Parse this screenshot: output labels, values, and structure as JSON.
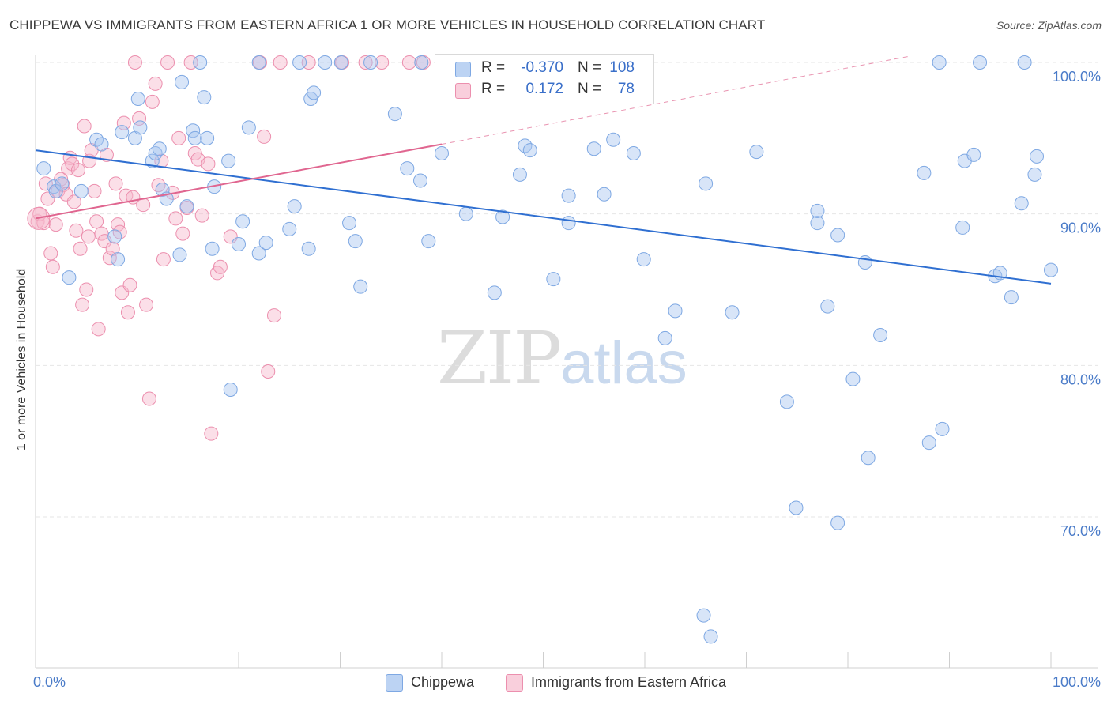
{
  "title": "CHIPPEWA VS IMMIGRANTS FROM EASTERN AFRICA 1 OR MORE VEHICLES IN HOUSEHOLD CORRELATION CHART",
  "source": "Source: ZipAtlas.com",
  "watermark": {
    "zip": "ZIP",
    "atlas": "atlas"
  },
  "legend": {
    "rows": [
      {
        "r_label": "R =",
        "r_value": "-0.370",
        "n_label": "N =",
        "n_value": "108",
        "color": "#a8c6ef"
      },
      {
        "r_label": "R =",
        "r_value": "0.172",
        "n_label": "N =",
        "n_value": "78",
        "color": "#f6b8cc"
      }
    ]
  },
  "bottom_legend": [
    {
      "label": "Chippewa",
      "color": "#a8c6ef"
    },
    {
      "label": "Immigrants from Eastern Africa",
      "color": "#f6b8cc"
    }
  ],
  "colors": {
    "blue_fill": "#a8c6ef",
    "blue_stroke": "#7ea8e3",
    "blue_line": "#2f6fd1",
    "pink_fill": "#f6b8cc",
    "pink_stroke": "#ec8fae",
    "pink_line": "#e06690",
    "grid": "#e6e6e6",
    "tick_text": "#4a7bc8"
  },
  "chart_data": {
    "type": "scatter",
    "title": "CHIPPEWA VS IMMIGRANTS FROM EASTERN AFRICA 1 OR MORE VEHICLES IN HOUSEHOLD CORRELATION CHART",
    "xlabel": "",
    "ylabel": "1 or more Vehicles in Household",
    "xlim": [
      0,
      100
    ],
    "ylim": [
      60,
      101
    ],
    "x_tick_labels": [
      "0.0%",
      "100.0%"
    ],
    "y_ticks": [
      70,
      80,
      90,
      100
    ],
    "y_tick_labels": [
      "70.0%",
      "80.0%",
      "90.0%",
      "100.0%"
    ],
    "grid": true,
    "legend_position": "top-center",
    "series": [
      {
        "name": "Chippewa",
        "points": [
          [
            0.8,
            93
          ],
          [
            1.8,
            91.8
          ],
          [
            2,
            91.5
          ],
          [
            2.6,
            92
          ],
          [
            3.3,
            85.8
          ],
          [
            4.5,
            91.5
          ],
          [
            6,
            94.9
          ],
          [
            6.5,
            94.6
          ],
          [
            7.8,
            88.5
          ],
          [
            8.1,
            87
          ],
          [
            8.5,
            95.4
          ],
          [
            9.8,
            95
          ],
          [
            10.1,
            97.6
          ],
          [
            10.3,
            95.7
          ],
          [
            11.5,
            93.5
          ],
          [
            11.8,
            94
          ],
          [
            12.2,
            94.3
          ],
          [
            12.5,
            91.6
          ],
          [
            12.9,
            91
          ],
          [
            14.2,
            87.3
          ],
          [
            14.4,
            98.7
          ],
          [
            14.9,
            90.5
          ],
          [
            15.5,
            95.5
          ],
          [
            15.7,
            95
          ],
          [
            16.6,
            97.7
          ],
          [
            16.9,
            95
          ],
          [
            17.4,
            87.7
          ],
          [
            17.6,
            91.8
          ],
          [
            16.2,
            100
          ],
          [
            19,
            93.5
          ],
          [
            19.2,
            78.4
          ],
          [
            20,
            88
          ],
          [
            20.4,
            89.5
          ],
          [
            21,
            95.7
          ],
          [
            22,
            87.4
          ],
          [
            22.7,
            88.1
          ],
          [
            22,
            100
          ],
          [
            25,
            89
          ],
          [
            25.5,
            90.5
          ],
          [
            26,
            100
          ],
          [
            26.9,
            87.7
          ],
          [
            27.1,
            97.6
          ],
          [
            27.4,
            98
          ],
          [
            28.5,
            100
          ],
          [
            30.1,
            100
          ],
          [
            30.9,
            89.4
          ],
          [
            31.5,
            88.2
          ],
          [
            32,
            85.2
          ],
          [
            33,
            100
          ],
          [
            35.4,
            96.6
          ],
          [
            36.6,
            93
          ],
          [
            37.9,
            92.2
          ],
          [
            38,
            100
          ],
          [
            38.7,
            88.2
          ],
          [
            40,
            94
          ],
          [
            41,
            100
          ],
          [
            42.4,
            90
          ],
          [
            41,
            100
          ],
          [
            45.2,
            84.8
          ],
          [
            46,
            89.8
          ],
          [
            47.7,
            92.6
          ],
          [
            48.2,
            94.5
          ],
          [
            48.7,
            94.2
          ],
          [
            50,
            100
          ],
          [
            51,
            85.7
          ],
          [
            52.5,
            89.4
          ],
          [
            52.5,
            91.2
          ],
          [
            53.2,
            100
          ],
          [
            55,
            94.3
          ],
          [
            55.2,
            98
          ],
          [
            56,
            91.3
          ],
          [
            56.9,
            94.9
          ],
          [
            58.9,
            94
          ],
          [
            59.9,
            87
          ],
          [
            62,
            81.8
          ],
          [
            63,
            83.6
          ],
          [
            66,
            92
          ],
          [
            68.6,
            83.5
          ],
          [
            71,
            94.1
          ],
          [
            74,
            77.6
          ],
          [
            74.9,
            70.6
          ],
          [
            77,
            89.4
          ],
          [
            77,
            90.2
          ],
          [
            78,
            83.9
          ],
          [
            79,
            88.6
          ],
          [
            79,
            69.6
          ],
          [
            80.5,
            79.1
          ],
          [
            81.7,
            86.8
          ],
          [
            82,
            73.9
          ],
          [
            83.2,
            82
          ],
          [
            87.5,
            92.7
          ],
          [
            89.3,
            75.8
          ],
          [
            91.3,
            89.1
          ],
          [
            91.5,
            93.5
          ],
          [
            92.4,
            93.9
          ],
          [
            94.5,
            85.9
          ],
          [
            95,
            86.1
          ],
          [
            96.1,
            84.5
          ],
          [
            97.1,
            90.7
          ],
          [
            98.4,
            92.6
          ],
          [
            98.6,
            93.8
          ],
          [
            97.4,
            100
          ],
          [
            100,
            86.3
          ],
          [
            89,
            100
          ],
          [
            93,
            100
          ],
          [
            88,
            74.9
          ],
          [
            66.5,
            62.1
          ],
          [
            65.8,
            63.5
          ]
        ]
      },
      {
        "name": "Immigrants from Eastern Africa",
        "points": [
          [
            0.2,
            89.5
          ],
          [
            0.4,
            90
          ],
          [
            0.8,
            89.4
          ],
          [
            1,
            92
          ],
          [
            1.2,
            91
          ],
          [
            1.5,
            87.4
          ],
          [
            1.7,
            86.5
          ],
          [
            2,
            89.3
          ],
          [
            2.2,
            91.5
          ],
          [
            2.5,
            92.3
          ],
          [
            2.7,
            91.9
          ],
          [
            3,
            91.3
          ],
          [
            3.2,
            93
          ],
          [
            3.4,
            93.7
          ],
          [
            3.6,
            93.3
          ],
          [
            3.8,
            90.8
          ],
          [
            4,
            88.9
          ],
          [
            4.2,
            92.9
          ],
          [
            4.4,
            87.7
          ],
          [
            4.6,
            84
          ],
          [
            4.8,
            95.8
          ],
          [
            5,
            85
          ],
          [
            5.2,
            88.5
          ],
          [
            5.3,
            93.5
          ],
          [
            5.5,
            94.2
          ],
          [
            5.8,
            91.5
          ],
          [
            6,
            89.5
          ],
          [
            6.2,
            82.4
          ],
          [
            6.5,
            88.7
          ],
          [
            6.8,
            88.2
          ],
          [
            7,
            93.9
          ],
          [
            7.3,
            87.1
          ],
          [
            7.6,
            87.7
          ],
          [
            7.9,
            92
          ],
          [
            8.1,
            89.3
          ],
          [
            8.3,
            88.8
          ],
          [
            8.5,
            84.8
          ],
          [
            8.7,
            96
          ],
          [
            8.9,
            91.2
          ],
          [
            9.1,
            83.5
          ],
          [
            9.3,
            85.3
          ],
          [
            9.6,
            91.1
          ],
          [
            9.8,
            100
          ],
          [
            10.2,
            96.3
          ],
          [
            10.6,
            90.6
          ],
          [
            10.9,
            84
          ],
          [
            11.2,
            77.8
          ],
          [
            11.5,
            97.4
          ],
          [
            11.8,
            98.6
          ],
          [
            12.1,
            91.9
          ],
          [
            12.4,
            93.5
          ],
          [
            12.6,
            87
          ],
          [
            13,
            100
          ],
          [
            13.5,
            91.4
          ],
          [
            13.8,
            89.7
          ],
          [
            14.1,
            95
          ],
          [
            14.5,
            88.7
          ],
          [
            14.9,
            90.4
          ],
          [
            15.3,
            100
          ],
          [
            15.7,
            94
          ],
          [
            16,
            93.6
          ],
          [
            16.4,
            89.9
          ],
          [
            17,
            93.3
          ],
          [
            17.3,
            75.5
          ],
          [
            17.9,
            86.1
          ],
          [
            18.2,
            86.5
          ],
          [
            19.2,
            88.5
          ],
          [
            22.1,
            100
          ],
          [
            22.5,
            95.1
          ],
          [
            22.9,
            79.6
          ],
          [
            23.5,
            83.3
          ],
          [
            24.1,
            100
          ],
          [
            26.9,
            100
          ],
          [
            30.2,
            100
          ],
          [
            32.5,
            100
          ],
          [
            34.1,
            100
          ],
          [
            36.8,
            100
          ],
          [
            38.2,
            100
          ]
        ]
      }
    ],
    "trend_lines": [
      {
        "series": "Chippewa",
        "from": [
          0,
          94.2
        ],
        "to": [
          100,
          85.4
        ],
        "style": "solid"
      },
      {
        "series": "Immigrants from Eastern Africa",
        "from": [
          0,
          89.7
        ],
        "to": [
          40,
          94.6
        ],
        "style": "solid"
      },
      {
        "series": "Immigrants from Eastern Africa",
        "from": [
          40,
          94.6
        ],
        "to": [
          86,
          100.4
        ],
        "style": "dashed"
      }
    ]
  }
}
